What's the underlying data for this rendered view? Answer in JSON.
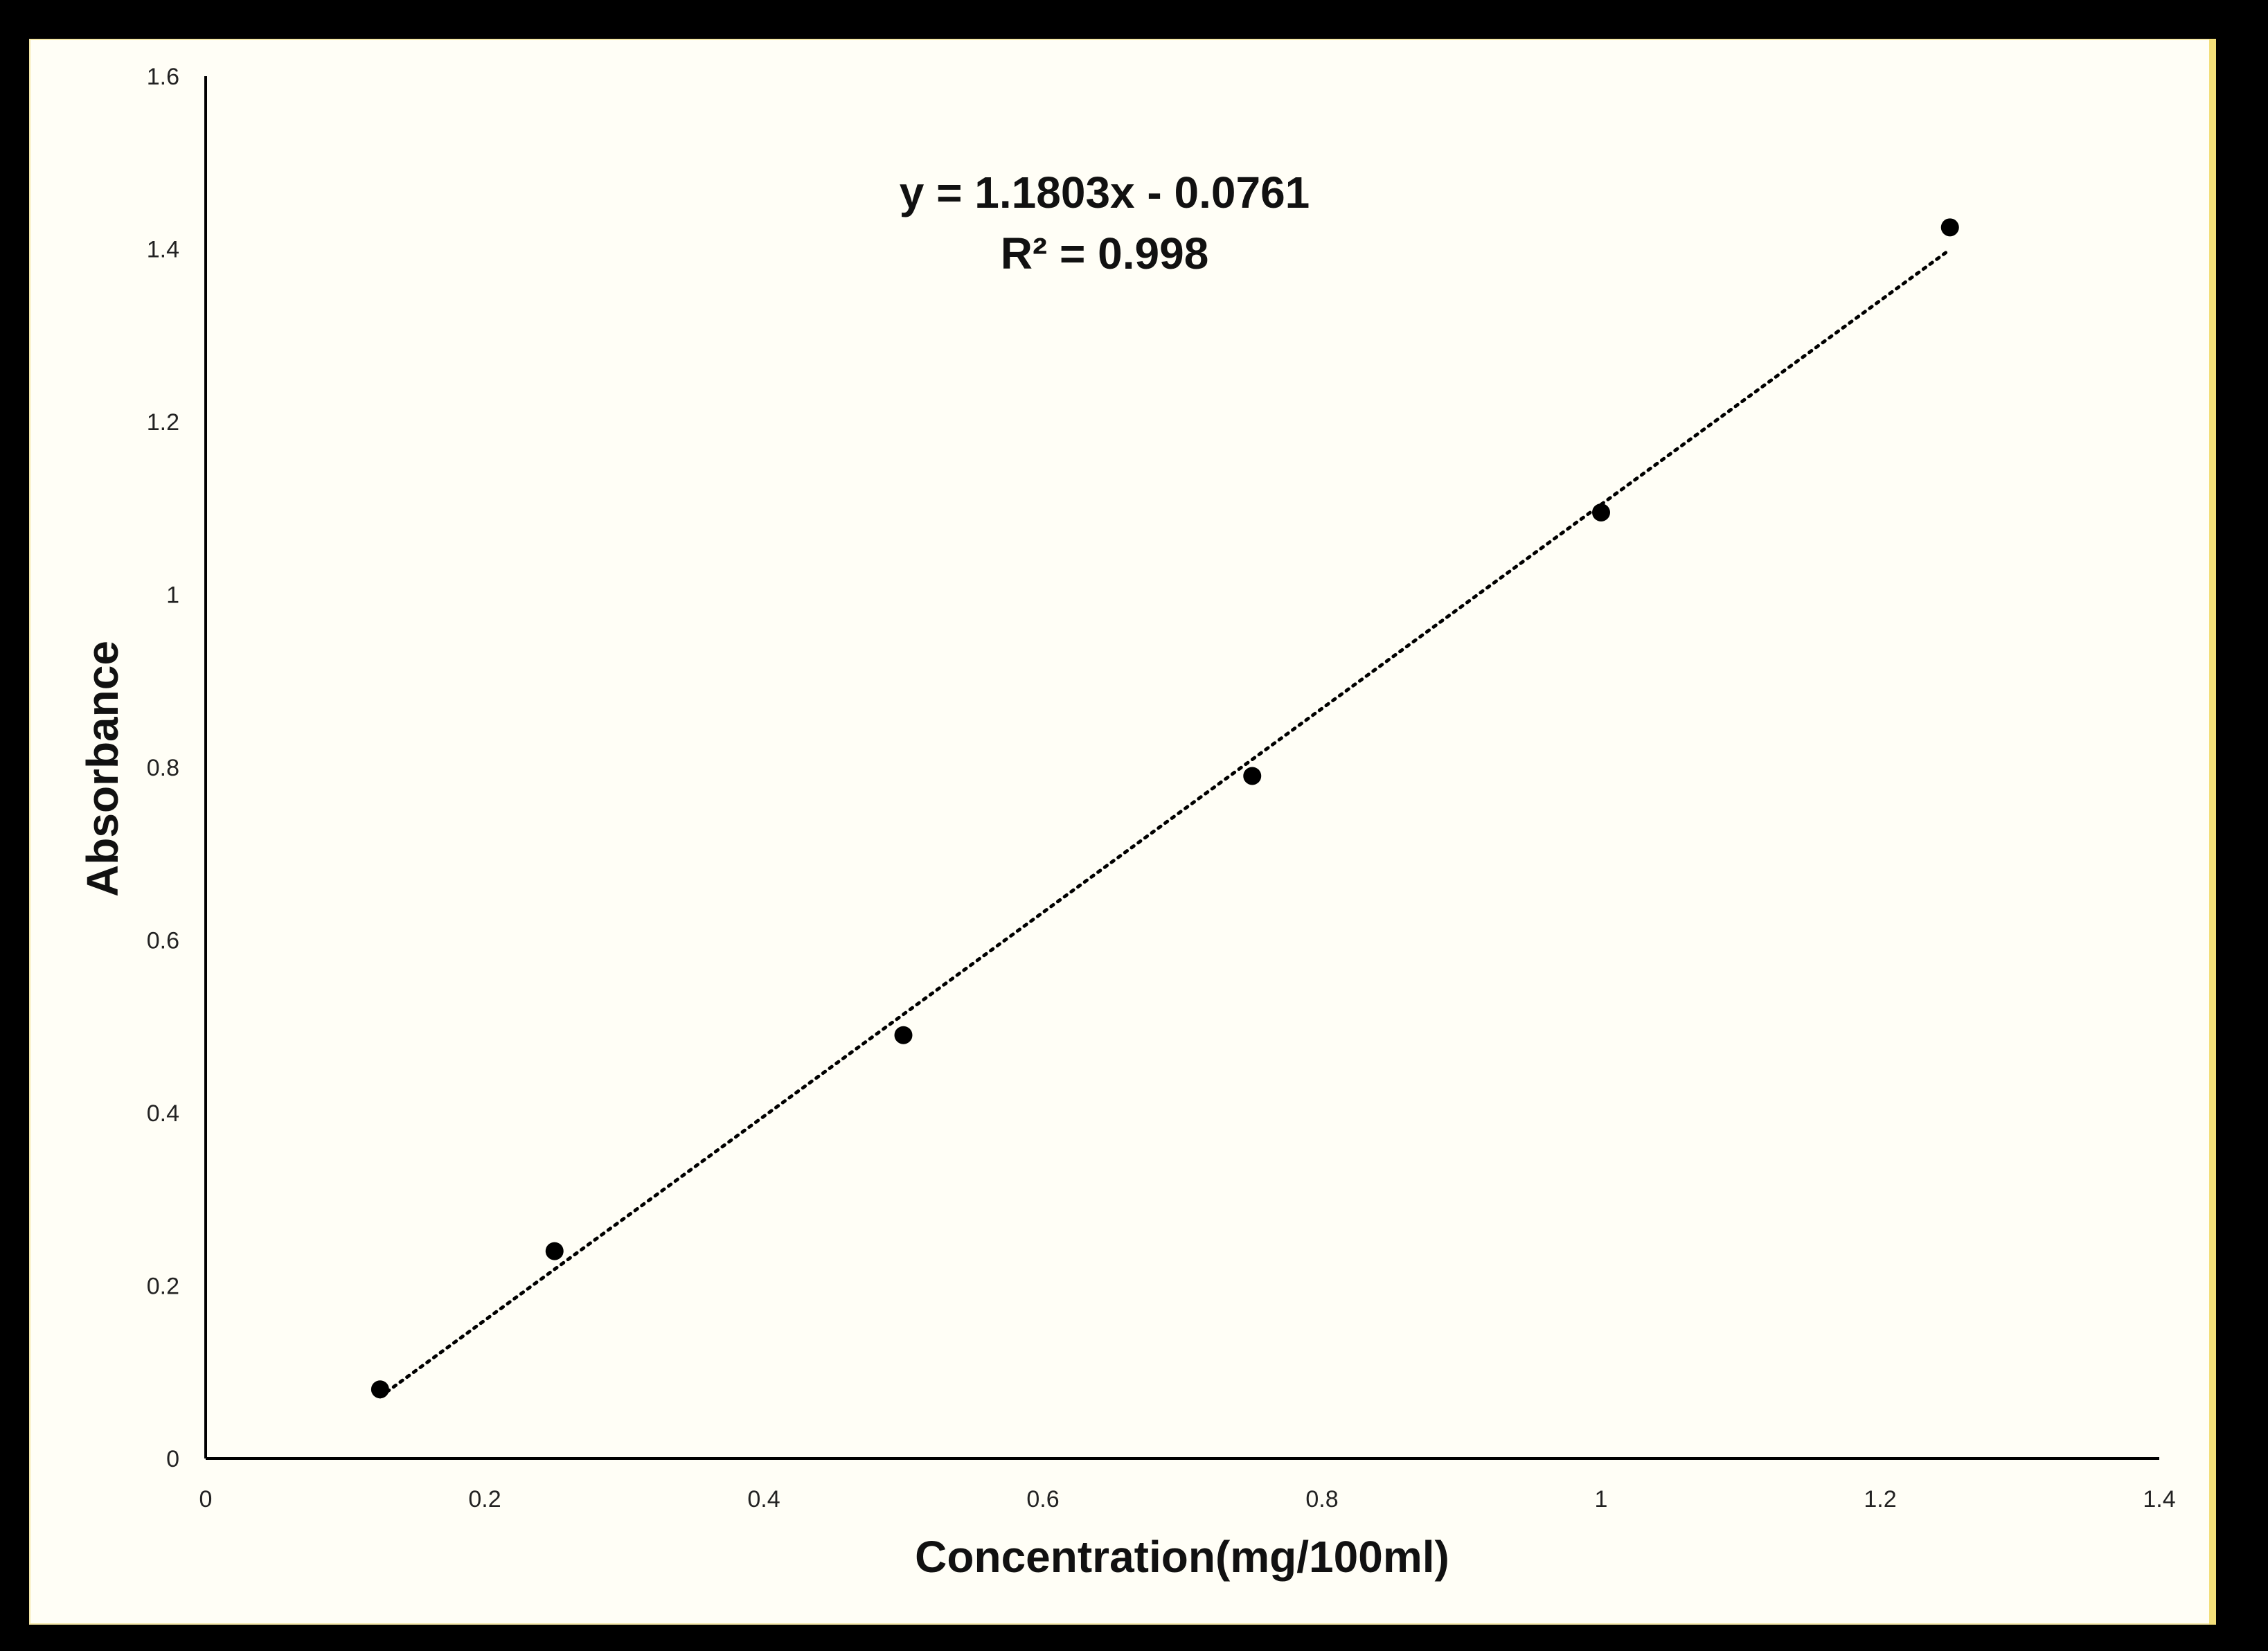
{
  "chart_data": {
    "type": "scatter",
    "xlabel": "Concentration(mg/100ml)",
    "ylabel": "Absorbance",
    "xlim": [
      0,
      1.4
    ],
    "ylim": [
      0,
      1.6
    ],
    "x_ticks": [
      "0",
      "0.2",
      "0.4",
      "0.6",
      "0.8",
      "1",
      "1.2",
      "1.4"
    ],
    "y_ticks": [
      "0",
      "0.2",
      "0.4",
      "0.6",
      "0.8",
      "1",
      "1.2",
      "1.4",
      "1.6"
    ],
    "grid": false,
    "points": [
      {
        "x": 0.125,
        "y": 0.08
      },
      {
        "x": 0.25,
        "y": 0.24
      },
      {
        "x": 0.5,
        "y": 0.49
      },
      {
        "x": 0.75,
        "y": 0.79
      },
      {
        "x": 1.0,
        "y": 1.095
      },
      {
        "x": 1.25,
        "y": 1.425
      }
    ],
    "trendline": {
      "slope": 1.1803,
      "intercept": -0.0761,
      "x_start": 0.125,
      "x_end": 1.25,
      "style": "dotted"
    },
    "annotation": {
      "equation": "y = 1.1803x - 0.0761",
      "r_squared": "R² = 0.998"
    },
    "colors": {
      "marker": "#000000",
      "trendline": "#000000",
      "background": "#fffef6"
    }
  }
}
